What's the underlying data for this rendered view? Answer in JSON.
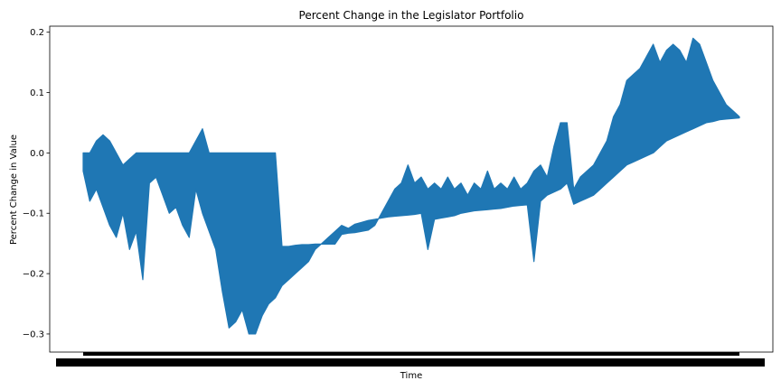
{
  "chart_data": {
    "type": "area",
    "title": "Percent Change in the Legislator Portfolio",
    "xlabel": "Time",
    "ylabel": "Percent Change in Value",
    "ylim": [
      -0.33,
      0.21
    ],
    "yticks": [
      -0.3,
      -0.2,
      -0.1,
      0.0,
      0.1,
      0.2
    ],
    "ytick_labels": [
      "−0.3",
      "−0.2",
      "−0.1",
      "0.0",
      "0.1",
      "0.2"
    ],
    "grid": false,
    "legend": "none",
    "series_color": "#1f77b4",
    "x_is_index": true,
    "x_count": 100,
    "series": [
      {
        "values_high": [
          0.0,
          0.0,
          0.02,
          0.03,
          0.02,
          0.0,
          -0.02,
          -0.01,
          0.0,
          0.0,
          0.0,
          0.0,
          0.0,
          0.0,
          0.0,
          0.0,
          0.0,
          0.02,
          0.04,
          0.0,
          0.0,
          0.0,
          0.0,
          0.0,
          0.0,
          0.0,
          0.0,
          0.0,
          0.0,
          0.0,
          -0.155,
          -0.155,
          -0.153,
          -0.152,
          -0.152,
          -0.151,
          -0.151,
          -0.151,
          -0.151,
          -0.135,
          -0.133,
          -0.132,
          -0.13,
          -0.128,
          -0.12,
          -0.1,
          -0.08,
          -0.06,
          -0.05,
          -0.02,
          -0.05,
          -0.04,
          -0.06,
          -0.05,
          -0.06,
          -0.04,
          -0.06,
          -0.05,
          -0.07,
          -0.05,
          -0.06,
          -0.03,
          -0.06,
          -0.05,
          -0.06,
          -0.04,
          -0.06,
          -0.05,
          -0.03,
          -0.02,
          -0.04,
          0.01,
          0.05,
          0.05,
          -0.06,
          -0.04,
          -0.03,
          -0.02,
          0.0,
          0.02,
          0.06,
          0.08,
          0.12,
          0.13,
          0.14,
          0.16,
          0.18,
          0.15,
          0.17,
          0.18,
          0.17,
          0.15,
          0.19,
          0.18,
          0.15,
          0.12,
          0.1,
          0.08,
          0.07,
          0.06
        ],
        "values_low": [
          -0.03,
          -0.08,
          -0.06,
          -0.09,
          -0.12,
          -0.14,
          -0.1,
          -0.16,
          -0.13,
          -0.21,
          -0.05,
          -0.04,
          -0.07,
          -0.1,
          -0.09,
          -0.12,
          -0.14,
          -0.06,
          -0.1,
          -0.13,
          -0.16,
          -0.23,
          -0.29,
          -0.28,
          -0.26,
          -0.3,
          -0.3,
          -0.27,
          -0.25,
          -0.24,
          -0.22,
          -0.21,
          -0.2,
          -0.19,
          -0.18,
          -0.16,
          -0.15,
          -0.14,
          -0.13,
          -0.12,
          -0.125,
          -0.118,
          -0.115,
          -0.112,
          -0.11,
          -0.108,
          -0.106,
          -0.105,
          -0.104,
          -0.103,
          -0.102,
          -0.1,
          -0.16,
          -0.11,
          -0.108,
          -0.106,
          -0.104,
          -0.1,
          -0.098,
          -0.096,
          -0.095,
          -0.094,
          -0.093,
          -0.092,
          -0.09,
          -0.088,
          -0.087,
          -0.086,
          -0.18,
          -0.08,
          -0.07,
          -0.065,
          -0.06,
          -0.05,
          -0.085,
          -0.08,
          -0.075,
          -0.07,
          -0.06,
          -0.05,
          -0.04,
          -0.03,
          -0.02,
          -0.015,
          -0.01,
          -0.005,
          0.0,
          0.01,
          0.02,
          0.025,
          0.03,
          0.035,
          0.04,
          0.045,
          0.05,
          0.052,
          0.055,
          0.056,
          0.057,
          0.058
        ]
      }
    ]
  }
}
